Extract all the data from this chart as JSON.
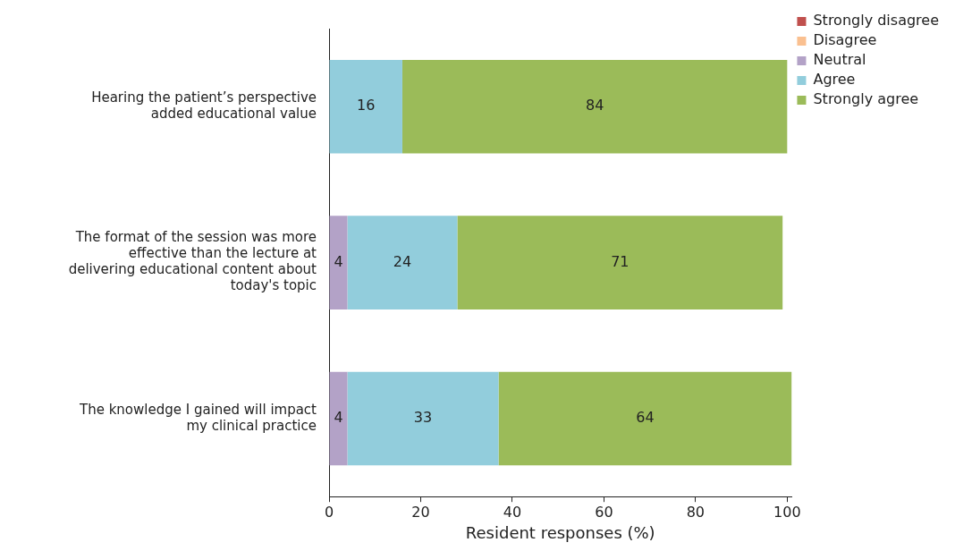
{
  "chart_data": {
    "type": "bar",
    "orientation": "horizontal",
    "stacked": true,
    "xlabel": "Resident responses (%)",
    "categories": [
      "Hearing the patient’s perspective added educational value",
      "The format of the session was more effective than the lecture at delivering educational content about today's topic",
      "The knowledge I gained will impact my clinical practice"
    ],
    "series": [
      {
        "name": "Strongly disagree",
        "color": "#c0504d",
        "values": [
          0,
          0,
          0
        ],
        "value_labels": [
          null,
          null,
          null
        ]
      },
      {
        "name": "Disagree",
        "color": "#fac090",
        "values": [
          0,
          0,
          0
        ],
        "value_labels": [
          null,
          null,
          null
        ]
      },
      {
        "name": "Neutral",
        "color": "#b3a2c7",
        "values": [
          0,
          4,
          4
        ],
        "value_labels": [
          null,
          "4",
          "4"
        ]
      },
      {
        "name": "Agree",
        "color": "#92cddc",
        "values": [
          16,
          24,
          33
        ],
        "value_labels": [
          "16",
          "24",
          "33"
        ]
      },
      {
        "name": "Strongly agree",
        "color": "#9bbb59",
        "values": [
          84,
          71,
          64
        ],
        "value_labels": [
          "84",
          "71",
          "64"
        ]
      }
    ],
    "xlim": [
      0,
      101
    ],
    "xticks": [
      0,
      20,
      40,
      60,
      80,
      100
    ],
    "grid": false,
    "legend": "top right"
  }
}
